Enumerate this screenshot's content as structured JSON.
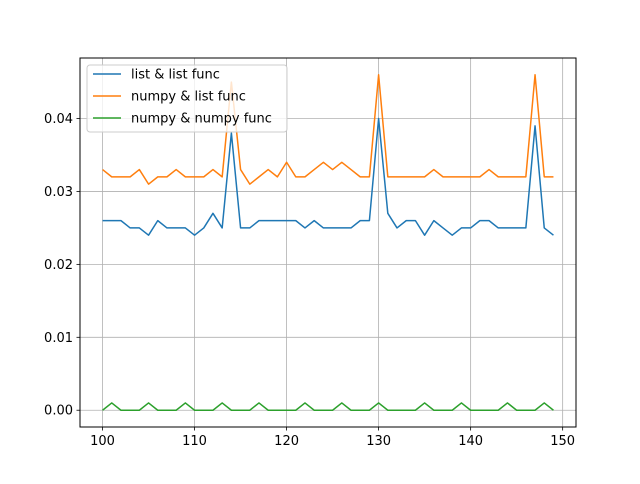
{
  "chart_data": {
    "type": "line",
    "title": "",
    "xlabel": "",
    "ylabel": "",
    "grid": true,
    "legend_position": "top-left",
    "xlim": [
      97.55,
      151.45
    ],
    "ylim": [
      -0.0023,
      0.0483
    ],
    "xticks": [
      100,
      110,
      120,
      130,
      140,
      150
    ],
    "yticks": [
      0.0,
      0.01,
      0.02,
      0.03,
      0.04
    ],
    "xtick_labels": [
      "100",
      "110",
      "120",
      "130",
      "140",
      "150"
    ],
    "ytick_labels": [
      "0.00",
      "0.01",
      "0.02",
      "0.03",
      "0.04"
    ],
    "x": [
      100,
      101,
      102,
      103,
      104,
      105,
      106,
      107,
      108,
      109,
      110,
      111,
      112,
      113,
      114,
      115,
      116,
      117,
      118,
      119,
      120,
      121,
      122,
      123,
      124,
      125,
      126,
      127,
      128,
      129,
      130,
      131,
      132,
      133,
      134,
      135,
      136,
      137,
      138,
      139,
      140,
      141,
      142,
      143,
      144,
      145,
      146,
      147,
      148,
      149
    ],
    "series": [
      {
        "name": "list & list func",
        "color": "#1f77b4",
        "values": [
          0.026,
          0.026,
          0.026,
          0.025,
          0.025,
          0.024,
          0.026,
          0.025,
          0.025,
          0.025,
          0.024,
          0.025,
          0.027,
          0.025,
          0.038,
          0.025,
          0.025,
          0.026,
          0.026,
          0.026,
          0.026,
          0.026,
          0.025,
          0.026,
          0.025,
          0.025,
          0.025,
          0.025,
          0.026,
          0.026,
          0.04,
          0.027,
          0.025,
          0.026,
          0.026,
          0.024,
          0.026,
          0.025,
          0.024,
          0.025,
          0.025,
          0.026,
          0.026,
          0.025,
          0.025,
          0.025,
          0.025,
          0.039,
          0.025,
          0.024
        ]
      },
      {
        "name": "numpy & list func",
        "color": "#ff7f0e",
        "values": [
          0.033,
          0.032,
          0.032,
          0.032,
          0.033,
          0.031,
          0.032,
          0.032,
          0.033,
          0.032,
          0.032,
          0.032,
          0.033,
          0.032,
          0.045,
          0.033,
          0.031,
          0.032,
          0.033,
          0.032,
          0.034,
          0.032,
          0.032,
          0.033,
          0.034,
          0.033,
          0.034,
          0.033,
          0.032,
          0.032,
          0.046,
          0.032,
          0.032,
          0.032,
          0.032,
          0.032,
          0.033,
          0.032,
          0.032,
          0.032,
          0.032,
          0.032,
          0.033,
          0.032,
          0.032,
          0.032,
          0.032,
          0.046,
          0.032,
          0.032
        ]
      },
      {
        "name": "numpy & numpy func",
        "color": "#2ca02c",
        "values": [
          0.0,
          0.001,
          0.0,
          0.0,
          0.0,
          0.001,
          0.0,
          0.0,
          0.0,
          0.001,
          0.0,
          0.0,
          0.0,
          0.001,
          0.0,
          0.0,
          0.0,
          0.001,
          0.0,
          0.0,
          0.0,
          0.0,
          0.001,
          0.0,
          0.0,
          0.0,
          0.001,
          0.0,
          0.0,
          0.0,
          0.001,
          0.0,
          0.0,
          0.0,
          0.0,
          0.001,
          0.0,
          0.0,
          0.0,
          0.001,
          0.0,
          0.0,
          0.0,
          0.0,
          0.001,
          0.0,
          0.0,
          0.0,
          0.001,
          0.0
        ]
      }
    ]
  }
}
